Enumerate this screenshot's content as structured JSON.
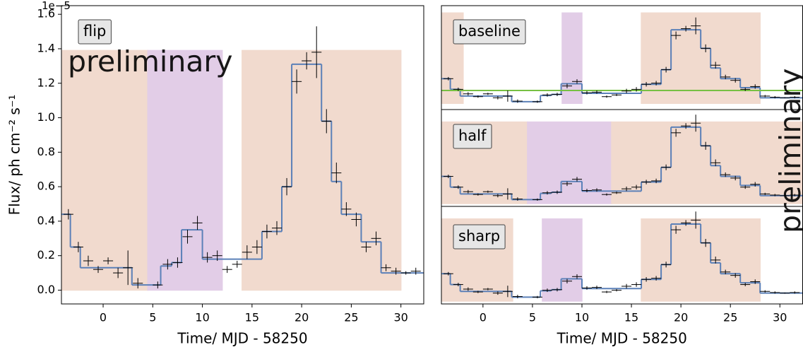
{
  "chart_data": [
    {
      "type": "step",
      "label": "flip",
      "watermark": "preliminary",
      "ylabel": "Flux/ ph cm⁻² s⁻¹",
      "y_offset_label": "1e−5",
      "xlabel": "Time/ MJD - 58250",
      "xlim": [
        -4.2,
        32.3
      ],
      "ylim": [
        -0.08,
        1.65
      ],
      "xticks": [
        0,
        5,
        10,
        15,
        20,
        25,
        30
      ],
      "yticks": [
        {
          "value": 0,
          "label": "0.0"
        },
        0.2,
        0.4,
        0.6,
        0.8,
        {
          "value": 1,
          "label": "1.0"
        },
        1.2,
        1.4,
        1.6
      ],
      "step_color": "#5b80b8",
      "point_color": "#000000",
      "regions": [
        {
          "x": [
            -4.2,
            4.5
          ],
          "y": [
            0,
            1.39
          ],
          "color": "#fbe3d7"
        },
        {
          "x": [
            4.5,
            12
          ],
          "y": [
            0,
            1.39
          ],
          "color": "#ebd6f1"
        },
        {
          "x": [
            14,
            30
          ],
          "y": [
            0,
            1.39
          ],
          "color": "#fbe3d7"
        }
      ],
      "steps": {
        "edges": [
          -4.2,
          -3.3,
          -2.3,
          2.9,
          5.8,
          6.9,
          7.9,
          10,
          16,
          18,
          19,
          22,
          23,
          24,
          26,
          27,
          28,
          32.3
        ],
        "levels": [
          0.44,
          0.25,
          0.13,
          0.03,
          0.14,
          0.16,
          0.35,
          0.18,
          0.34,
          0.6,
          1.31,
          0.98,
          0.63,
          0.44,
          0.28,
          0.28,
          0.1
        ]
      },
      "points": {
        "x": [
          -3.5,
          -2.5,
          -1.5,
          -0.5,
          0.5,
          1.5,
          2.5,
          3.5,
          5.5,
          6.5,
          7.5,
          8.5,
          9.5,
          10.5,
          11.5,
          12.5,
          13.5,
          14.5,
          15.5,
          16.5,
          17.5,
          18.5,
          19.5,
          20.5,
          21.5,
          22.5,
          23.5,
          24.5,
          25.5,
          26.5,
          27.5,
          28.5,
          29.5,
          30.5,
          31.5
        ],
        "y": [
          0.44,
          0.25,
          0.17,
          0.12,
          0.17,
          0.1,
          0.13,
          0.04,
          0.03,
          0.15,
          0.16,
          0.31,
          0.39,
          0.19,
          0.2,
          0.12,
          0.15,
          0.22,
          0.25,
          0.34,
          0.36,
          0.6,
          1.21,
          1.33,
          1.38,
          0.98,
          0.68,
          0.47,
          0.41,
          0.25,
          0.3,
          0.13,
          0.11,
          0.1,
          0.11
        ],
        "yerr": [
          0.03,
          0.03,
          0.03,
          0.02,
          0.02,
          0.03,
          0.1,
          0.03,
          0.02,
          0.03,
          0.03,
          0.04,
          0.04,
          0.03,
          0.03,
          0.02,
          0.02,
          0.04,
          0.04,
          0.04,
          0.04,
          0.05,
          0.07,
          0.05,
          0.15,
          0.07,
          0.06,
          0.04,
          0.04,
          0.03,
          0.04,
          0.02,
          0.02,
          0.01,
          0.02
        ],
        "xerr": 0.5
      }
    },
    {
      "type": "step",
      "label": "baseline",
      "xlim": [
        -4.2,
        32.3
      ],
      "ylim": [
        -0.11,
        1.74
      ],
      "step_color": "#5b80b8",
      "baseline": 0.23,
      "baseline_color": "#77c043",
      "regions": [
        {
          "x": [
            -4.2,
            -2
          ],
          "y": [
            0,
            1.61
          ],
          "color": "#fbe3d7"
        },
        {
          "x": [
            8,
            10
          ],
          "y": [
            0,
            1.61
          ],
          "color": "#ebd6f1"
        },
        {
          "x": [
            16,
            28
          ],
          "y": [
            0,
            1.61
          ],
          "color": "#fbe3d7"
        }
      ],
      "steps": {
        "edges": [
          -4.2,
          -3.3,
          -2.3,
          2.9,
          5.8,
          6.9,
          7.9,
          10,
          16,
          18,
          19,
          22,
          23,
          24,
          26,
          27,
          28,
          32.3
        ],
        "levels": [
          0.44,
          0.25,
          0.13,
          0.03,
          0.14,
          0.16,
          0.35,
          0.18,
          0.34,
          0.6,
          1.31,
          0.98,
          0.63,
          0.44,
          0.28,
          0.28,
          0.1
        ]
      }
    },
    {
      "type": "step",
      "label": "half",
      "xlim": [
        -4.2,
        32.3
      ],
      "ylim": [
        -0.09,
        1.62
      ],
      "step_color": "#5b80b8",
      "regions": [
        {
          "x": [
            -4.2,
            4.5
          ],
          "y": [
            -0.04,
            1.4
          ],
          "color": "#fbe3d7"
        },
        {
          "x": [
            4.5,
            13
          ],
          "y": [
            -0.04,
            1.4
          ],
          "color": "#ebd6f1"
        },
        {
          "x": [
            13,
            32.3
          ],
          "y": [
            -0.04,
            1.4
          ],
          "color": "#fbe3d7"
        }
      ],
      "steps": {
        "edges": [
          -4.2,
          -3.3,
          -2.3,
          2.9,
          5.8,
          6.9,
          7.9,
          10,
          16,
          18,
          19,
          22,
          23,
          24,
          26,
          27,
          28,
          32.3
        ],
        "levels": [
          0.44,
          0.25,
          0.13,
          0.03,
          0.14,
          0.16,
          0.35,
          0.18,
          0.34,
          0.6,
          1.31,
          0.98,
          0.63,
          0.44,
          0.28,
          0.28,
          0.1
        ]
      }
    },
    {
      "type": "step",
      "label": "sharp",
      "watermark": "preliminary",
      "xlabel": "Time/ MJD - 58250",
      "xlim": [
        -4.2,
        32.3
      ],
      "ylim": [
        -0.09,
        1.62
      ],
      "xticks": [
        0,
        5,
        10,
        15,
        20,
        25,
        30
      ],
      "step_color": "#5b80b8",
      "regions": [
        {
          "x": [
            -4.2,
            3
          ],
          "y": [
            -0.04,
            1.4
          ],
          "color": "#fbe3d7"
        },
        {
          "x": [
            6,
            10
          ],
          "y": [
            -0.04,
            1.4
          ],
          "color": "#ebd6f1"
        },
        {
          "x": [
            16,
            28
          ],
          "y": [
            -0.04,
            1.4
          ],
          "color": "#fbe3d7"
        }
      ],
      "steps": {
        "edges": [
          -4.2,
          -3.3,
          -2.3,
          2.9,
          5.8,
          6.9,
          7.9,
          10,
          16,
          18,
          19,
          22,
          23,
          24,
          26,
          27,
          28,
          32.3
        ],
        "levels": [
          0.44,
          0.25,
          0.13,
          0.03,
          0.14,
          0.16,
          0.35,
          0.18,
          0.34,
          0.6,
          1.31,
          0.98,
          0.63,
          0.44,
          0.28,
          0.28,
          0.1
        ]
      }
    }
  ]
}
